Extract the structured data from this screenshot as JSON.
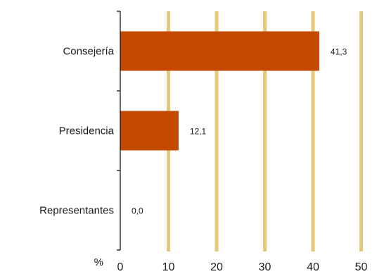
{
  "chart_data": {
    "type": "bar",
    "orientation": "horizontal",
    "categories": [
      "Consejería",
      "Presidencia",
      "Representantes"
    ],
    "values": [
      41.3,
      12.1,
      0.0
    ],
    "value_labels": [
      "41,3",
      "12,1",
      "0,0"
    ],
    "x_ticks": [
      "0",
      "10",
      "20",
      "30",
      "40",
      "50"
    ],
    "x_unit_label": "%",
    "xlim": [
      0,
      50
    ],
    "grid": "vertical gridlines",
    "legend": "none",
    "colors": {
      "bar": "#c44a00",
      "grid": "#e3c979",
      "axis": "#000000"
    }
  }
}
